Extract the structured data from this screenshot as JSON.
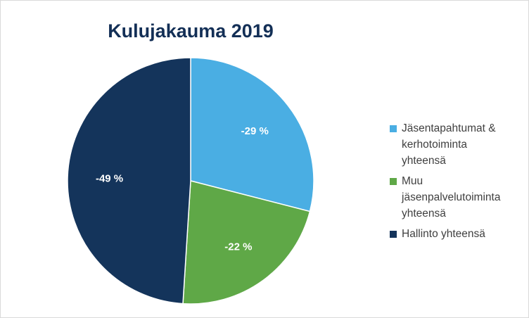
{
  "chart_data": {
    "type": "pie",
    "title": "Kulujakauma 2019",
    "categories": [
      "Jäsentapahtumat & kerhotoiminta yhteensä",
      "Muu jäsenpalvelutoiminta yhteensä",
      "Hallinto yhteensä"
    ],
    "values": [
      -29,
      -22,
      -49
    ],
    "data_labels": [
      "-29 %",
      "-22 %",
      "-49 %"
    ],
    "colors": [
      "#4aaee3",
      "#5fa847",
      "#14345b"
    ],
    "legend_position": "right",
    "legend": [
      {
        "lines": [
          "Jäsentapahtumat &",
          "kerhotoiminta",
          "yhteensä"
        ],
        "color": "#4aaee3"
      },
      {
        "lines": [
          "Muu",
          "jäsenpalvelutoiminta",
          "yhteensä"
        ],
        "color": "#5fa847"
      },
      {
        "lines": [
          "Hallinto yhteensä"
        ],
        "color": "#14345b"
      }
    ]
  }
}
